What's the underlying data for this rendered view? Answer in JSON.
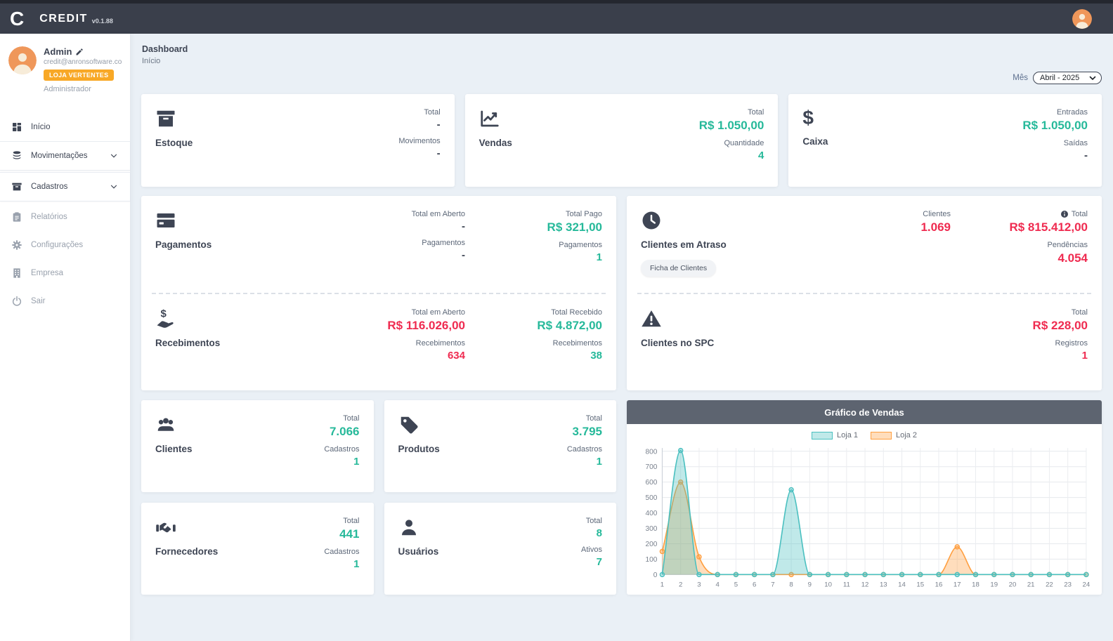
{
  "topbar": {
    "logo_letter": "C",
    "brand": "CREDIT",
    "version": "v0.1.88"
  },
  "sidebar": {
    "user": {
      "name": "Admin",
      "email": "credit@anronsoftware.co...",
      "badge": "LOJA VERTENTES",
      "role": "Administrador"
    },
    "menu": {
      "inicio": "Início",
      "movimentacoes": "Movimentações",
      "cadastros": "Cadastros",
      "relatorios": "Relatórios",
      "configuracoes": "Configurações",
      "empresa": "Empresa",
      "sair": "Sair"
    }
  },
  "header": {
    "title": "Dashboard",
    "breadcrumb": "Início",
    "month_label": "Mês",
    "month_value": "Abril - 2025"
  },
  "cards": {
    "estoque": {
      "title": "Estoque",
      "stat1_label": "Total",
      "stat1_value": "-",
      "stat2_label": "Movimentos",
      "stat2_value": "-"
    },
    "vendas": {
      "title": "Vendas",
      "stat1_label": "Total",
      "stat1_value": "R$ 1.050,00",
      "stat2_label": "Quantidade",
      "stat2_value": "4"
    },
    "caixa": {
      "title": "Caixa",
      "stat1_label": "Entradas",
      "stat1_value": "R$ 1.050,00",
      "stat2_label": "Saídas",
      "stat2_value": "-"
    },
    "pagamentos": {
      "title": "Pagamentos",
      "open_label": "Total em Aberto",
      "open_value": "-",
      "open_count_label": "Pagamentos",
      "open_count_value": "-",
      "paid_label": "Total Pago",
      "paid_value": "R$ 321,00",
      "paid_count_label": "Pagamentos",
      "paid_count_value": "1"
    },
    "recebimentos": {
      "title": "Recebimentos",
      "open_label": "Total em Aberto",
      "open_value": "R$ 116.026,00",
      "open_count_label": "Recebimentos",
      "open_count_value": "634",
      "received_label": "Total Recebido",
      "received_value": "R$ 4.872,00",
      "received_count_label": "Recebimentos",
      "received_count_value": "38"
    },
    "clientes_atraso": {
      "title": "Clientes em Atraso",
      "button": "Ficha de Clientes",
      "clients_label": "Clientes",
      "clients_value": "1.069",
      "total_label": "Total",
      "total_value": "R$ 815.412,00",
      "pending_label": "Pendências",
      "pending_value": "4.054"
    },
    "clientes_spc": {
      "title": "Clientes no SPC",
      "total_label": "Total",
      "total_value": "R$ 228,00",
      "reg_label": "Registros",
      "reg_value": "1"
    },
    "clientes": {
      "title": "Clientes",
      "stat1_label": "Total",
      "stat1_value": "7.066",
      "stat2_label": "Cadastros",
      "stat2_value": "1"
    },
    "produtos": {
      "title": "Produtos",
      "stat1_label": "Total",
      "stat1_value": "3.795",
      "stat2_label": "Cadastros",
      "stat2_value": "1"
    },
    "fornecedores": {
      "title": "Fornecedores",
      "stat1_label": "Total",
      "stat1_value": "441",
      "stat2_label": "Cadastros",
      "stat2_value": "1"
    },
    "usuarios": {
      "title": "Usuários",
      "stat1_label": "Total",
      "stat1_value": "8",
      "stat2_label": "Ativos",
      "stat2_value": "7"
    }
  },
  "chart_data": {
    "type": "area",
    "title": "Gráfico de Vendas",
    "x": [
      1,
      2,
      3,
      4,
      5,
      6,
      7,
      8,
      9,
      10,
      11,
      12,
      13,
      14,
      15,
      16,
      17,
      18,
      19,
      20,
      21,
      22,
      23,
      24
    ],
    "series": [
      {
        "name": "Loja 1",
        "color": "#4bc0c0",
        "fill": "rgba(75,192,192,0.35)",
        "values": [
          0,
          805,
          0,
          0,
          0,
          0,
          0,
          550,
          0,
          0,
          0,
          0,
          0,
          0,
          0,
          0,
          0,
          0,
          0,
          0,
          0,
          0,
          0,
          0
        ]
      },
      {
        "name": "Loja 2",
        "color": "#ff9f40",
        "fill": "rgba(255,159,64,0.35)",
        "values": [
          150,
          600,
          115,
          0,
          0,
          0,
          0,
          0,
          0,
          0,
          0,
          0,
          0,
          0,
          0,
          0,
          180,
          0,
          0,
          0,
          0,
          0,
          0,
          0
        ]
      }
    ],
    "xlabel": "",
    "ylabel": "",
    "ylim": [
      0,
      800
    ],
    "yticks": [
      0,
      100,
      200,
      300,
      400,
      500,
      600,
      700,
      800
    ],
    "grid": true,
    "legend_position": "top"
  },
  "colors": {
    "accent_green": "#26b99a",
    "accent_red": "#ef2b50",
    "badge_orange": "#f8a826",
    "topbar": "#3a3f4b",
    "chart_header": "#5d6470"
  }
}
